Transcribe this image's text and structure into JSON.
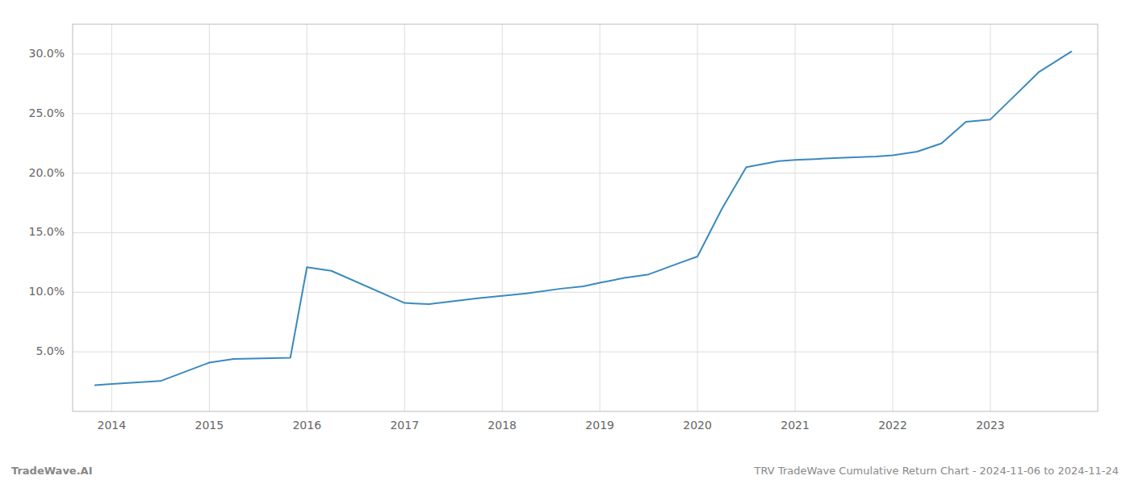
{
  "chart_data": {
    "type": "line",
    "x": [
      2013.83,
      2014.0,
      2014.5,
      2015.0,
      2015.25,
      2015.83,
      2016.0,
      2016.25,
      2017.0,
      2017.25,
      2017.75,
      2018.0,
      2018.25,
      2018.6,
      2018.83,
      2019.0,
      2019.25,
      2019.5,
      2019.83,
      2020.0,
      2020.25,
      2020.5,
      2020.83,
      2021.0,
      2021.25,
      2021.5,
      2021.83,
      2022.0,
      2022.25,
      2022.5,
      2022.75,
      2023.0,
      2023.25,
      2023.5,
      2023.83
    ],
    "values": [
      2.2,
      2.3,
      2.55,
      4.1,
      4.4,
      4.5,
      12.1,
      11.8,
      9.1,
      9.0,
      9.5,
      9.7,
      9.9,
      10.3,
      10.5,
      10.8,
      11.2,
      11.5,
      12.5,
      13.0,
      17.0,
      20.5,
      21.0,
      21.1,
      21.2,
      21.3,
      21.4,
      21.5,
      21.8,
      22.5,
      24.3,
      24.5,
      26.5,
      28.5,
      30.2
    ],
    "color": "#3a8abf",
    "xlim": [
      2013.6,
      2024.1
    ],
    "ylim": [
      0.0,
      32.5
    ],
    "xticks": [
      2014,
      2015,
      2016,
      2017,
      2018,
      2019,
      2020,
      2021,
      2022,
      2023
    ],
    "yticks": [
      {
        "value": 5.0,
        "label": "5.0%"
      },
      {
        "value": 10.0,
        "label": "10.0%"
      },
      {
        "value": 15.0,
        "label": "15.0%"
      },
      {
        "value": 20.0,
        "label": "20.0%"
      },
      {
        "value": 25.0,
        "label": "25.0%"
      },
      {
        "value": 30.0,
        "label": "30.0%"
      }
    ],
    "grid": true,
    "annotations": [
      "TradeWave.AI",
      "TRV TradeWave Cumulative Return Chart - 2024-11-06 to 2024-11-24"
    ]
  }
}
